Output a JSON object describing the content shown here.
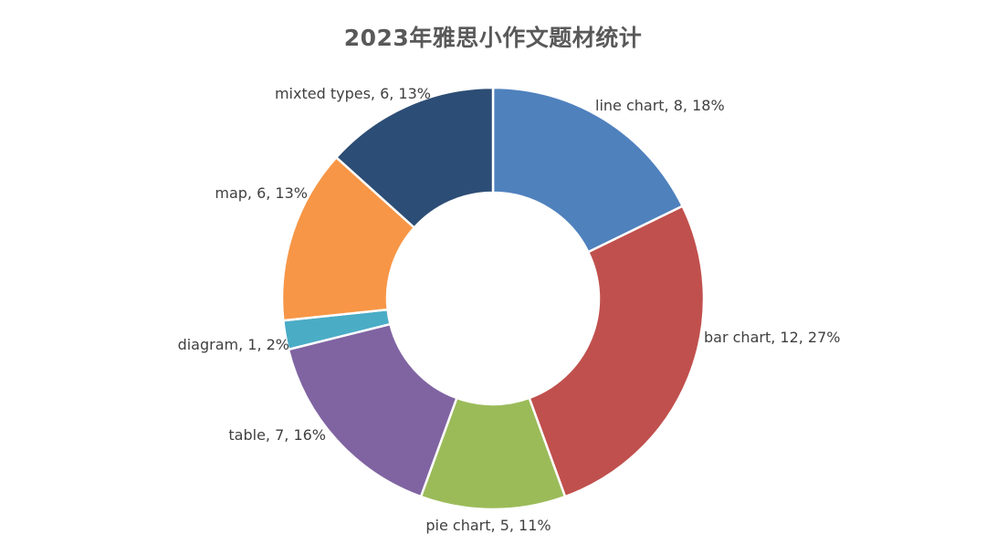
{
  "chart_data": {
    "type": "pie",
    "subtype": "doughnut",
    "title": "2023年雅思小作文题材统计",
    "categories": [
      "line chart",
      "bar chart",
      "pie chart",
      "table",
      "diagram",
      "map",
      "mixted types"
    ],
    "values": [
      8,
      12,
      5,
      7,
      1,
      6,
      6
    ],
    "percent_labels": [
      "18%",
      "27%",
      "11%",
      "16%",
      "2%",
      "13%",
      "13%"
    ],
    "colors": [
      "#4F81BD",
      "#C0504D",
      "#9BBB59",
      "#8064A2",
      "#4BACC6",
      "#F79646",
      "#2C4D75"
    ],
    "start_angle_deg": 0,
    "direction": "clockwise",
    "legend": "none"
  }
}
